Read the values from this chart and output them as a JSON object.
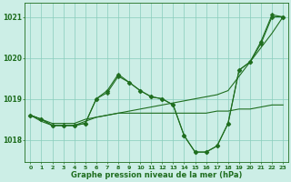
{
  "x": [
    0,
    1,
    2,
    3,
    4,
    5,
    6,
    7,
    8,
    9,
    10,
    11,
    12,
    13,
    14,
    15,
    16,
    17,
    18,
    19,
    20,
    21,
    22,
    23
  ],
  "series1_marked": [
    1018.6,
    1018.5,
    1018.35,
    1018.35,
    1018.35,
    1018.4,
    1019.0,
    1019.2,
    1019.6,
    1019.4,
    1019.2,
    1019.05,
    1019.0,
    1018.85,
    1018.1,
    1017.7,
    1017.7,
    1017.85,
    1018.4,
    1019.7,
    1019.9,
    1020.4,
    1021.05,
    1021.0
  ],
  "series2_line": [
    1018.6,
    1018.45,
    1018.35,
    1018.35,
    1018.35,
    1018.45,
    1018.55,
    1018.6,
    1018.65,
    1018.65,
    1018.65,
    1018.65,
    1018.65,
    1018.65,
    1018.65,
    1018.65,
    1018.65,
    1018.7,
    1018.7,
    1018.75,
    1018.75,
    1018.8,
    1018.85,
    1018.85
  ],
  "series3_diag": [
    1018.6,
    1018.5,
    1018.4,
    1018.4,
    1018.4,
    1018.5,
    1018.55,
    1018.6,
    1018.65,
    1018.7,
    1018.75,
    1018.8,
    1018.85,
    1018.9,
    1018.95,
    1019.0,
    1019.05,
    1019.1,
    1019.2,
    1019.55,
    1019.9,
    1020.25,
    1020.6,
    1021.0
  ],
  "series4_marked2": [
    1018.6,
    1018.5,
    1018.35,
    1018.35,
    1018.35,
    1018.4,
    1019.0,
    1019.15,
    1019.55,
    1019.4,
    1019.2,
    1019.05,
    1019.0,
    1018.85,
    1018.1,
    1017.7,
    1017.7,
    1017.85,
    1018.4,
    1019.7,
    1019.9,
    1020.35,
    1021.0,
    1021.0
  ],
  "color": "#1f6e1f",
  "bg_color": "#cceee6",
  "grid_color": "#88ccbb",
  "xlabel": "Graphe pression niveau de la mer (hPa)",
  "ylim": [
    1017.45,
    1021.35
  ],
  "yticks": [
    1018,
    1019,
    1020,
    1021
  ],
  "xticks": [
    0,
    1,
    2,
    3,
    4,
    5,
    6,
    7,
    8,
    9,
    10,
    11,
    12,
    13,
    14,
    15,
    16,
    17,
    18,
    19,
    20,
    21,
    22,
    23
  ]
}
